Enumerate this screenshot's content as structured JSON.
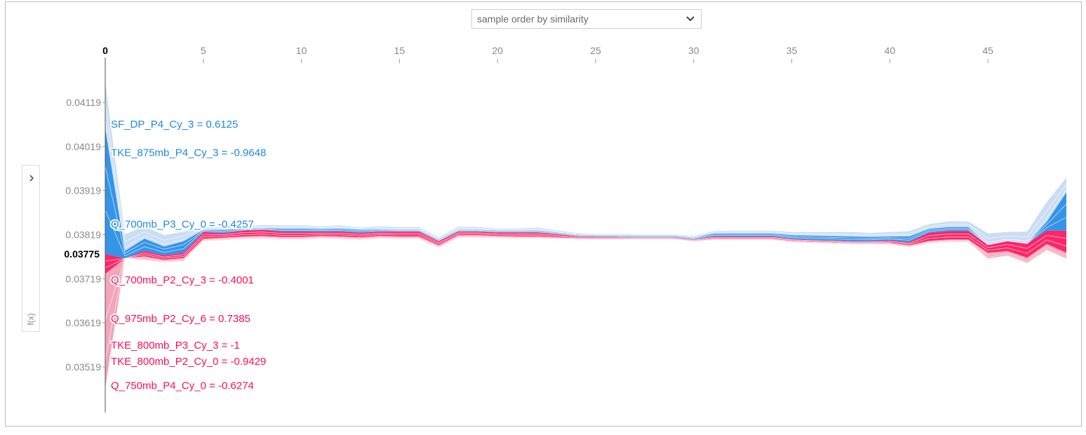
{
  "controls": {
    "ordering_select": {
      "value": "sample order by similarity",
      "icon": "chevron-down-icon"
    },
    "side_toggle": {
      "icon": "chevron-right-icon",
      "label": "f(x)"
    }
  },
  "colors": {
    "positive_dark": "#ff0d57",
    "positive_light": "#f29bb2",
    "negative_dark": "#1e88e5",
    "negative_light": "#c4d9f2",
    "axis": "#999999",
    "tick_text": "#8a8a8a",
    "base_value_text": "#000000"
  },
  "chart_data": {
    "type": "area",
    "title": "",
    "xlabel": "",
    "ylabel": "f(x)",
    "x_ticks": [
      0,
      5,
      10,
      15,
      20,
      25,
      30,
      35,
      40,
      45
    ],
    "x_current": 0,
    "xlim": [
      0,
      49
    ],
    "y_ticks": [
      0.04119,
      0.04019,
      0.03919,
      0.03819,
      0.03719,
      0.03619,
      0.03519
    ],
    "y_tick_labels": [
      "0.04119",
      "0.04019",
      "0.03919",
      "0.03819",
      "0.03719",
      "0.03619",
      "0.03519"
    ],
    "ylim": [
      0.0345,
      0.0426
    ],
    "output_value": 0.03775,
    "output_label": "0.03775",
    "grid": false,
    "series": [
      {
        "name": "upper envelope",
        "points": [
          [
            0,
            0.04165
          ],
          [
            1,
            0.0382
          ],
          [
            2,
            0.03838
          ],
          [
            3,
            0.03818
          ],
          [
            4,
            0.03826
          ],
          [
            5,
            0.03836
          ],
          [
            6,
            0.03835
          ],
          [
            7,
            0.03838
          ],
          [
            8,
            0.03841
          ],
          [
            9,
            0.0384
          ],
          [
            10,
            0.0384
          ],
          [
            11,
            0.03838
          ],
          [
            12,
            0.0384
          ],
          [
            13,
            0.03835
          ],
          [
            14,
            0.03838
          ],
          [
            15,
            0.03836
          ],
          [
            16,
            0.03836
          ],
          [
            17,
            0.03813
          ],
          [
            18,
            0.03837
          ],
          [
            19,
            0.03836
          ],
          [
            20,
            0.03833
          ],
          [
            21,
            0.03833
          ],
          [
            22,
            0.03835
          ],
          [
            23,
            0.03829
          ],
          [
            24,
            0.03823
          ],
          [
            25,
            0.03821
          ],
          [
            26,
            0.03821
          ],
          [
            27,
            0.0382
          ],
          [
            28,
            0.0382
          ],
          [
            29,
            0.0382
          ],
          [
            30,
            0.03816
          ],
          [
            31,
            0.03827
          ],
          [
            32,
            0.03828
          ],
          [
            33,
            0.03828
          ],
          [
            34,
            0.03828
          ],
          [
            35,
            0.03825
          ],
          [
            36,
            0.03825
          ],
          [
            37,
            0.03825
          ],
          [
            38,
            0.03825
          ],
          [
            39,
            0.03823
          ],
          [
            40,
            0.03825
          ],
          [
            41,
            0.03827
          ],
          [
            42,
            0.03843
          ],
          [
            43,
            0.03849
          ],
          [
            44,
            0.03849
          ],
          [
            45,
            0.03822
          ],
          [
            46,
            0.03825
          ],
          [
            47,
            0.03826
          ],
          [
            48,
            0.03893
          ],
          [
            49,
            0.03948
          ]
        ]
      },
      {
        "name": "negative inner boundary",
        "points": [
          [
            0,
            0.0406
          ],
          [
            1,
            0.03782
          ],
          [
            2,
            0.0381
          ],
          [
            3,
            0.03792
          ],
          [
            4,
            0.03804
          ],
          [
            5,
            0.0383
          ],
          [
            6,
            0.0383
          ],
          [
            7,
            0.03832
          ],
          [
            8,
            0.03834
          ],
          [
            9,
            0.03833
          ],
          [
            10,
            0.03833
          ],
          [
            11,
            0.03832
          ],
          [
            12,
            0.03833
          ],
          [
            13,
            0.0383
          ],
          [
            14,
            0.03831
          ],
          [
            15,
            0.0383
          ],
          [
            16,
            0.0383
          ],
          [
            17,
            0.03808
          ],
          [
            18,
            0.0383
          ],
          [
            19,
            0.0383
          ],
          [
            20,
            0.03828
          ],
          [
            21,
            0.03828
          ],
          [
            22,
            0.03828
          ],
          [
            23,
            0.03824
          ],
          [
            24,
            0.03819
          ],
          [
            25,
            0.03818
          ],
          [
            26,
            0.03818
          ],
          [
            27,
            0.03817
          ],
          [
            28,
            0.03817
          ],
          [
            29,
            0.03817
          ],
          [
            30,
            0.03812
          ],
          [
            31,
            0.03822
          ],
          [
            32,
            0.03822
          ],
          [
            33,
            0.03822
          ],
          [
            34,
            0.03822
          ],
          [
            35,
            0.03818
          ],
          [
            36,
            0.03817
          ],
          [
            37,
            0.03816
          ],
          [
            38,
            0.03815
          ],
          [
            39,
            0.03814
          ],
          [
            40,
            0.03815
          ],
          [
            41,
            0.03815
          ],
          [
            42,
            0.03832
          ],
          [
            43,
            0.03836
          ],
          [
            44,
            0.03836
          ],
          [
            45,
            0.03796
          ],
          [
            46,
            0.03805
          ],
          [
            47,
            0.03799
          ],
          [
            48,
            0.03848
          ],
          [
            49,
            0.03915
          ]
        ]
      },
      {
        "name": "prediction f(x)",
        "points": [
          [
            0,
            0.03775
          ],
          [
            1,
            0.03765
          ],
          [
            2,
            0.03782
          ],
          [
            3,
            0.03772
          ],
          [
            4,
            0.03778
          ],
          [
            5,
            0.03825
          ],
          [
            6,
            0.03822
          ],
          [
            7,
            0.03828
          ],
          [
            8,
            0.0383
          ],
          [
            9,
            0.03826
          ],
          [
            10,
            0.03826
          ],
          [
            11,
            0.03826
          ],
          [
            12,
            0.03826
          ],
          [
            13,
            0.03823
          ],
          [
            14,
            0.03826
          ],
          [
            15,
            0.03826
          ],
          [
            16,
            0.03826
          ],
          [
            17,
            0.03804
          ],
          [
            18,
            0.03826
          ],
          [
            19,
            0.03826
          ],
          [
            20,
            0.03824
          ],
          [
            21,
            0.03824
          ],
          [
            22,
            0.03824
          ],
          [
            23,
            0.0382
          ],
          [
            24,
            0.03816
          ],
          [
            25,
            0.03814
          ],
          [
            26,
            0.03814
          ],
          [
            27,
            0.03813
          ],
          [
            28,
            0.03813
          ],
          [
            29,
            0.03813
          ],
          [
            30,
            0.03808
          ],
          [
            31,
            0.03815
          ],
          [
            32,
            0.03815
          ],
          [
            33,
            0.03815
          ],
          [
            34,
            0.03815
          ],
          [
            35,
            0.03809
          ],
          [
            36,
            0.03807
          ],
          [
            37,
            0.03806
          ],
          [
            38,
            0.03804
          ],
          [
            39,
            0.03804
          ],
          [
            40,
            0.03806
          ],
          [
            41,
            0.03802
          ],
          [
            42,
            0.03823
          ],
          [
            43,
            0.03827
          ],
          [
            44,
            0.03827
          ],
          [
            45,
            0.03796
          ],
          [
            46,
            0.03805
          ],
          [
            47,
            0.03799
          ],
          [
            48,
            0.03828
          ],
          [
            49,
            0.03828
          ]
        ]
      },
      {
        "name": "positive inner boundary",
        "points": [
          [
            0,
            0.0373
          ],
          [
            1,
            0.03765
          ],
          [
            2,
            0.0377
          ],
          [
            3,
            0.03762
          ],
          [
            4,
            0.03766
          ],
          [
            5,
            0.0381
          ],
          [
            6,
            0.03812
          ],
          [
            7,
            0.03815
          ],
          [
            8,
            0.03816
          ],
          [
            9,
            0.03814
          ],
          [
            10,
            0.03814
          ],
          [
            11,
            0.03816
          ],
          [
            12,
            0.03815
          ],
          [
            13,
            0.03813
          ],
          [
            14,
            0.03816
          ],
          [
            15,
            0.03815
          ],
          [
            16,
            0.03815
          ],
          [
            17,
            0.03795
          ],
          [
            18,
            0.03818
          ],
          [
            19,
            0.03818
          ],
          [
            20,
            0.03816
          ],
          [
            21,
            0.03815
          ],
          [
            22,
            0.03815
          ],
          [
            23,
            0.03813
          ],
          [
            24,
            0.03811
          ],
          [
            25,
            0.0381
          ],
          [
            26,
            0.0381
          ],
          [
            27,
            0.0381
          ],
          [
            28,
            0.0381
          ],
          [
            29,
            0.0381
          ],
          [
            30,
            0.03805
          ],
          [
            31,
            0.0381
          ],
          [
            32,
            0.0381
          ],
          [
            33,
            0.0381
          ],
          [
            34,
            0.0381
          ],
          [
            35,
            0.03805
          ],
          [
            36,
            0.03803
          ],
          [
            37,
            0.03802
          ],
          [
            38,
            0.038
          ],
          [
            39,
            0.038
          ],
          [
            40,
            0.038
          ],
          [
            41,
            0.03795
          ],
          [
            42,
            0.03805
          ],
          [
            43,
            0.03808
          ],
          [
            44,
            0.03808
          ],
          [
            45,
            0.03778
          ],
          [
            46,
            0.03782
          ],
          [
            47,
            0.03767
          ],
          [
            48,
            0.03798
          ],
          [
            49,
            0.03778
          ]
        ]
      },
      {
        "name": "lower envelope",
        "points": [
          [
            0,
            0.0347
          ],
          [
            1,
            0.03765
          ],
          [
            2,
            0.03762
          ],
          [
            3,
            0.03757
          ],
          [
            4,
            0.0376
          ],
          [
            5,
            0.03805
          ],
          [
            6,
            0.03807
          ],
          [
            7,
            0.0381
          ],
          [
            8,
            0.03811
          ],
          [
            9,
            0.03809
          ],
          [
            10,
            0.03809
          ],
          [
            11,
            0.03811
          ],
          [
            12,
            0.0381
          ],
          [
            13,
            0.03808
          ],
          [
            14,
            0.03811
          ],
          [
            15,
            0.0381
          ],
          [
            16,
            0.0381
          ],
          [
            17,
            0.0379
          ],
          [
            18,
            0.03813
          ],
          [
            19,
            0.03813
          ],
          [
            20,
            0.03812
          ],
          [
            21,
            0.03811
          ],
          [
            22,
            0.03811
          ],
          [
            23,
            0.0381
          ],
          [
            24,
            0.03809
          ],
          [
            25,
            0.03808
          ],
          [
            26,
            0.03808
          ],
          [
            27,
            0.03808
          ],
          [
            28,
            0.03808
          ],
          [
            29,
            0.03808
          ],
          [
            30,
            0.03803
          ],
          [
            31,
            0.03807
          ],
          [
            32,
            0.03807
          ],
          [
            33,
            0.03807
          ],
          [
            34,
            0.03807
          ],
          [
            35,
            0.03802
          ],
          [
            36,
            0.038
          ],
          [
            37,
            0.03799
          ],
          [
            38,
            0.03797
          ],
          [
            39,
            0.03797
          ],
          [
            40,
            0.03797
          ],
          [
            41,
            0.03791
          ],
          [
            42,
            0.038
          ],
          [
            43,
            0.03803
          ],
          [
            44,
            0.03803
          ],
          [
            45,
            0.03765
          ],
          [
            46,
            0.03772
          ],
          [
            47,
            0.03755
          ],
          [
            48,
            0.03785
          ],
          [
            49,
            0.03765
          ]
        ]
      }
    ],
    "annotations": [
      {
        "text": "SF_DP_P4_Cy_3 = 0.6125",
        "effect": "negative",
        "y": 0.0407
      },
      {
        "text": "TKE_875mb_P4_Cy_3 = -0.9648",
        "effect": "negative",
        "y": 0.04005
      },
      {
        "text": "Q_700mb_P3_Cy_0 = -0.4257",
        "effect": "negative",
        "y": 0.03843
      },
      {
        "text": "Q_700mb_P2_Cy_3 = -0.4001",
        "effect": "positive",
        "y": 0.03716
      },
      {
        "text": "Q_975mb_P2_Cy_6 = 0.7385",
        "effect": "positive",
        "y": 0.03629
      },
      {
        "text": "TKE_800mb_P3_Cy_3 = -1",
        "effect": "positive",
        "y": 0.03568
      },
      {
        "text": "TKE_800mb_P2_Cy_0 = -0.9429",
        "effect": "positive",
        "y": 0.03532
      },
      {
        "text": "Q_750mb_P4_Cy_0 = -0.6274",
        "effect": "positive",
        "y": 0.03477
      }
    ]
  }
}
